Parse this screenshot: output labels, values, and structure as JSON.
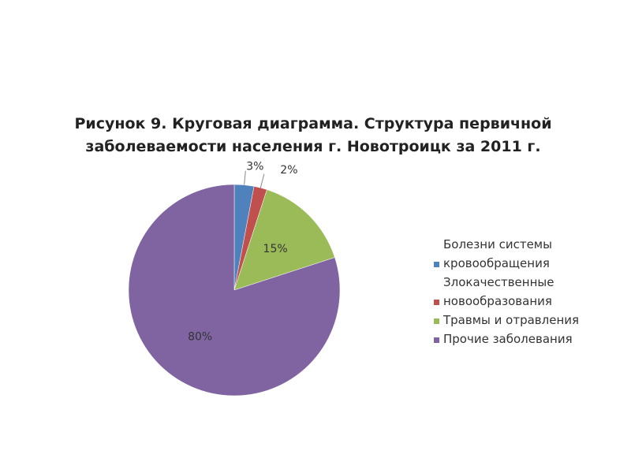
{
  "chart_data": {
    "type": "pie",
    "title": [
      "Рисунок 9. Круговая диаграмма. Структура первичной",
      "заболеваемости населения г. Новотроицк за 2011 г."
    ],
    "categories": [
      "Болезни системы кровообращения",
      "Злокачественные новообразования",
      "Травмы и отравления",
      "Прочие заболевания"
    ],
    "values": [
      3,
      2,
      15,
      80
    ],
    "value_labels": [
      "3%",
      "2%",
      "15%",
      "80%"
    ],
    "colors": [
      "#4f81bd",
      "#c0504d",
      "#9bbb59",
      "#8064a2"
    ],
    "legend": "right"
  }
}
